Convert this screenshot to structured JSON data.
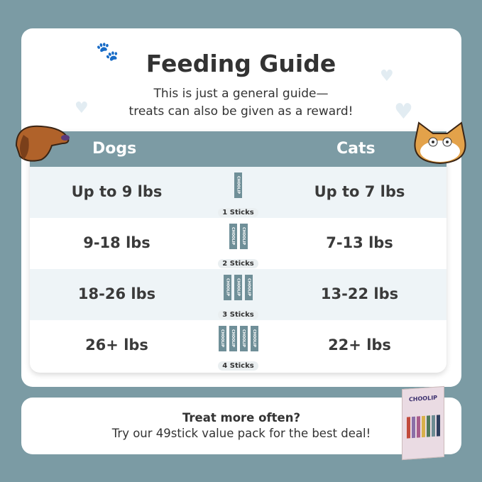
{
  "title": "Feeding Guide",
  "subtitle": [
    "This is just a general guide—",
    "treats can also be given as a reward!"
  ],
  "table": {
    "headers": {
      "dogs": "Dogs",
      "cats": "Cats"
    },
    "stick_brand": "CHOOLIP",
    "rows": [
      {
        "dogs": "Up to 9 lbs",
        "sticks": 1,
        "label": "1 Sticks",
        "cats": "Up to 7 lbs"
      },
      {
        "dogs": "9-18 lbs",
        "sticks": 2,
        "label": "2 Sticks",
        "cats": "7-13 lbs"
      },
      {
        "dogs": "18-26 lbs",
        "sticks": 3,
        "label": "3 Sticks",
        "cats": "13-22 lbs"
      },
      {
        "dogs": "26+ lbs",
        "sticks": 4,
        "label": "4 Sticks",
        "cats": "22+ lbs"
      }
    ]
  },
  "promo": {
    "heading": "Treat more often?",
    "text": "Try our 49stick value pack for the best deal!",
    "pack_brand": "CHOOLIP",
    "pack_colors": [
      "#c24b3c",
      "#8a6fa8",
      "#a85c8c",
      "#d8b04a",
      "#4f7a5a",
      "#6c8c93",
      "#2f3f5f"
    ]
  },
  "colors": {
    "background": "#7b9ba4",
    "header": "#7c9ba4",
    "stick": "#6f8f98"
  }
}
